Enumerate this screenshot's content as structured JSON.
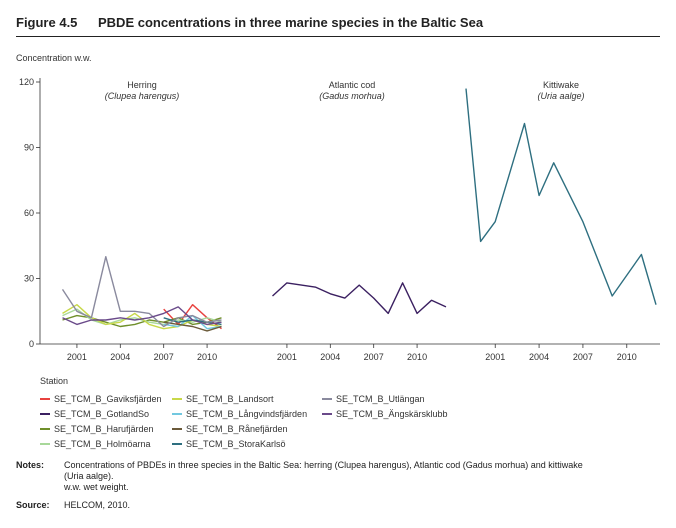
{
  "figure": {
    "number": "Figure 4.5",
    "title": "PBDE concentrations in three marine species in the Baltic Sea"
  },
  "chart_data": {
    "type": "line",
    "ylabel": "Concentration w.w.",
    "ylim": [
      0,
      120
    ],
    "yticks": [
      0,
      30,
      60,
      90,
      120
    ],
    "xticks": [
      2001,
      2004,
      2007,
      2010
    ],
    "legend_title": "Station",
    "series_styles": [
      {
        "name": "SE_TCM_B_Gaviksfjärden",
        "color": "#e8423f"
      },
      {
        "name": "SE_TCM_B_GotlandSo",
        "color": "#3b2061"
      },
      {
        "name": "SE_TCM_B_Harufjärden",
        "color": "#6f8f2a"
      },
      {
        "name": "SE_TCM_B_Holmöarna",
        "color": "#a8d89a"
      },
      {
        "name": "SE_TCM_B_Landsort",
        "color": "#c8d84a"
      },
      {
        "name": "SE_TCM_B_Långvindsfjärden",
        "color": "#72c8e0"
      },
      {
        "name": "SE_TCM_B_Rånefjärden",
        "color": "#6b5a3a"
      },
      {
        "name": "SE_TCM_B_StoraKarlsö",
        "color": "#2e6f80"
      },
      {
        "name": "SE_TCM_B_Utlängan",
        "color": "#8a8a9e"
      },
      {
        "name": "SE_TCM_B_Ängskärsklubb",
        "color": "#6a4a8a"
      }
    ],
    "panels": [
      {
        "title": "Herring",
        "subtitle": "Clupea harengus",
        "xlim": [
          1999,
          2012
        ],
        "series": [
          {
            "name": "SE_TCM_B_Gaviksfjärden",
            "x": [
              2007,
              2008,
              2009,
              2010,
              2011
            ],
            "y": [
              16,
              9,
              18,
              12,
              7
            ]
          },
          {
            "name": "SE_TCM_B_Harufjärden",
            "x": [
              2000,
              2001,
              2002,
              2003,
              2004,
              2005,
              2006,
              2007,
              2008,
              2009,
              2010,
              2011
            ],
            "y": [
              11,
              13,
              12,
              10,
              8,
              9,
              11,
              10,
              12,
              9,
              10,
              12
            ]
          },
          {
            "name": "SE_TCM_B_Holmöarna",
            "x": [
              2000,
              2001,
              2002,
              2003,
              2004,
              2005,
              2006,
              2007,
              2008,
              2009,
              2010,
              2011
            ],
            "y": [
              13,
              16,
              11,
              9,
              11,
              12,
              10,
              9,
              11,
              10,
              12,
              10
            ]
          },
          {
            "name": "SE_TCM_B_Landsort",
            "x": [
              2000,
              2001,
              2002,
              2003,
              2004,
              2005,
              2006,
              2007,
              2008,
              2009,
              2010,
              2011
            ],
            "y": [
              14,
              18,
              12,
              9,
              10,
              14,
              9,
              7,
              8,
              11,
              9,
              8
            ]
          },
          {
            "name": "SE_TCM_B_Långvindsfjärden",
            "x": [
              2007,
              2008,
              2009,
              2010,
              2011
            ],
            "y": [
              9,
              8,
              13,
              7,
              8
            ]
          },
          {
            "name": "SE_TCM_B_Rånefjärden",
            "x": [
              2007,
              2008,
              2009,
              2010,
              2011
            ],
            "y": [
              10,
              9,
              8,
              6,
              8
            ]
          },
          {
            "name": "SE_TCM_B_StoraKarlsö",
            "x": [
              2007,
              2008,
              2009,
              2010,
              2011
            ],
            "y": [
              12,
              10,
              11,
              10,
              9
            ]
          },
          {
            "name": "SE_TCM_B_Utlängan",
            "x": [
              2000,
              2001,
              2002,
              2003,
              2004,
              2005,
              2006,
              2007,
              2008,
              2009,
              2010,
              2011
            ],
            "y": [
              25,
              15,
              12,
              40,
              15,
              15,
              14,
              8,
              12,
              13,
              10,
              11
            ]
          },
          {
            "name": "SE_TCM_B_Ängskärsklubb",
            "x": [
              2000,
              2001,
              2002,
              2003,
              2004,
              2005,
              2006,
              2007,
              2008,
              2009,
              2010,
              2011
            ],
            "y": [
              12,
              9,
              11,
              11,
              12,
              11,
              12,
              14,
              17,
              11,
              9,
              10
            ]
          }
        ]
      },
      {
        "title": "Atlantic cod",
        "subtitle": "Gadus morhua",
        "xlim": [
          1999,
          2012
        ],
        "series": [
          {
            "name": "SE_TCM_B_GotlandSo",
            "x": [
              2000,
              2001,
              2002,
              2003,
              2004,
              2005,
              2006,
              2007,
              2008,
              2009,
              2010,
              2011,
              2012
            ],
            "y": [
              22,
              28,
              27,
              26,
              23,
              21,
              27,
              21,
              14,
              28,
              14,
              20,
              17
            ]
          }
        ]
      },
      {
        "title": "Kittiwake",
        "subtitle": "Uria aalge",
        "xlim": [
          1999,
          2012
        ],
        "series": [
          {
            "name": "SE_TCM_B_StoraKarlsö",
            "x": [
              1999,
              2000,
              2001,
              2003,
              2004,
              2005,
              2007,
              2009,
              2011,
              2012
            ],
            "y": [
              117,
              47,
              56,
              101,
              68,
              83,
              56,
              22,
              41,
              18
            ]
          }
        ]
      }
    ]
  },
  "notes": {
    "label": "Notes:",
    "line1": "Concentrations of PBDEs in three species in the Baltic Sea: herring (Clupea harengus), Atlantic cod (Gadus morhua) and kittiwake",
    "line2": "(Uria aalge).",
    "line3": "w.w. wet weight."
  },
  "source": {
    "label": "Source:",
    "text": "HELCOM, 2010."
  }
}
